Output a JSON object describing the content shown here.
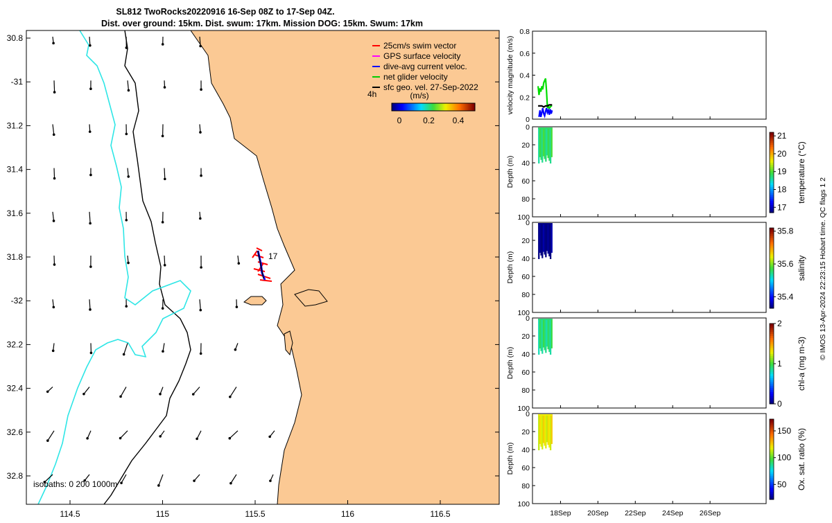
{
  "map": {
    "title_line1": "SL812 TwoRocks20220916 16-Sep 08Z to 17-Sep 04Z.",
    "title_line2": "Dist. over ground: 15km. Dist. swum: 17km. Mission DOG: 15km. Swum: 17km",
    "lat_ticks": [
      "30.8",
      "-31",
      "31.2",
      "31.4",
      "31.6",
      "31.8",
      "-32",
      "32.2",
      "32.4",
      "32.6",
      "32.8"
    ],
    "lon_ticks": [
      "114.5",
      "115",
      "115.5",
      "116",
      "116.5"
    ],
    "legend": [
      {
        "label": "25cm/s swim vector",
        "color": "#ff0000"
      },
      {
        "label": "GPS surface velocity",
        "color": "#ff00ff"
      },
      {
        "label": "dive-avg current veloc.",
        "color": "#0000ff"
      },
      {
        "label": "net glider velocity",
        "color": "#00cc00"
      },
      {
        "label": "sfc geo. vel. 27-Sep-2022",
        "color": "#000000"
      }
    ],
    "time_label": "4h",
    "colorbar_unit": "(m/s)",
    "colorbar_ticks": [
      "0",
      "0.2",
      "0.4"
    ],
    "track_label": "17",
    "isobath_label": "isobaths: 0   200  1000m",
    "land_color": "#fbc994",
    "isobath_200_color": "#000000",
    "isobath_1000_color": "#2ee6e6"
  },
  "chart_data": [
    {
      "type": "line",
      "ylabel": "velocity magnitude (m/s)",
      "ylim": [
        0,
        0.8
      ],
      "yticks": [
        "0",
        "0.2",
        "0.4",
        "0.6",
        "0.8"
      ],
      "series": [
        {
          "color": "#00dd00",
          "x": [
            0.0,
            0.05,
            0.1,
            0.15,
            0.2,
            0.25,
            0.3,
            0.35,
            0.4,
            0.45,
            0.5,
            0.55,
            0.6,
            0.65,
            0.7,
            0.75
          ],
          "values": [
            0.3,
            0.22,
            0.28,
            0.25,
            0.3,
            0.27,
            0.33,
            0.35,
            0.37,
            0.26,
            0.1,
            0.12,
            0.1,
            0.11,
            0.12,
            0.12
          ]
        },
        {
          "color": "#0000ff",
          "x": [
            0.05,
            0.1,
            0.15,
            0.2,
            0.25,
            0.3,
            0.35,
            0.4,
            0.45,
            0.5,
            0.55,
            0.6,
            0.65,
            0.7,
            0.75
          ],
          "values": [
            0.02,
            0.08,
            0.02,
            0.06,
            0.1,
            0.05,
            0.03,
            0.07,
            0.1,
            0.06,
            0.08,
            0.04,
            0.09,
            0.05,
            0.08
          ]
        },
        {
          "color": "#000000",
          "x": [
            0.0,
            0.1,
            0.2,
            0.3,
            0.4,
            0.5,
            0.6,
            0.7,
            0.75
          ],
          "values": [
            0.12,
            0.12,
            0.12,
            0.11,
            0.12,
            0.12,
            0.13,
            0.13,
            0.13
          ]
        }
      ]
    },
    {
      "type": "heatmap",
      "ylabel": "Depth (m)",
      "ylim": [
        0,
        100
      ],
      "yticks": [
        "0",
        "20",
        "40",
        "60",
        "80",
        "100"
      ],
      "cbar_label": "temperature (°C)",
      "cbar_ticks": [
        "17",
        "18",
        "19",
        "20",
        "21"
      ],
      "cbar_range": [
        16.7,
        21.2
      ],
      "profile_value": 18.8,
      "max_depth": 40
    },
    {
      "type": "heatmap",
      "ylabel": "Depth (m)",
      "ylim": [
        0,
        100
      ],
      "yticks": [
        "0",
        "20",
        "40",
        "60",
        "80",
        "100"
      ],
      "cbar_label": "salinity",
      "cbar_ticks": [
        "35.4",
        "35.6",
        "35.8"
      ],
      "cbar_range": [
        35.33,
        35.82
      ],
      "profile_value": 35.33,
      "max_depth": 40
    },
    {
      "type": "heatmap",
      "ylabel": "Depth (m)",
      "ylim": [
        0,
        100
      ],
      "yticks": [
        "0",
        "20",
        "40",
        "60",
        "80",
        "100"
      ],
      "cbar_label": "chl-a (mg m-3)",
      "cbar_ticks": [
        "0",
        "1",
        "2"
      ],
      "cbar_range": [
        0,
        2
      ],
      "profile_value": 0.9,
      "max_depth": 40
    },
    {
      "type": "heatmap",
      "ylabel": "Depth (m)",
      "ylim": [
        0,
        100
      ],
      "yticks": [
        "0",
        "20",
        "40",
        "60",
        "80",
        "100"
      ],
      "cbar_label": "Ox. sat. ratio (%)",
      "cbar_ticks": [
        "50",
        "100",
        "150"
      ],
      "cbar_range": [
        22,
        172
      ],
      "profile_value": 120,
      "max_depth": 40
    }
  ],
  "time_axis": {
    "tick_labels": [
      "18Sep",
      "20Sep",
      "22Sep",
      "24Sep",
      "26Sep"
    ]
  },
  "credit": "© IMOS 13-Apr-2024 22:23:15 Hobart time. QC flags 1  2"
}
